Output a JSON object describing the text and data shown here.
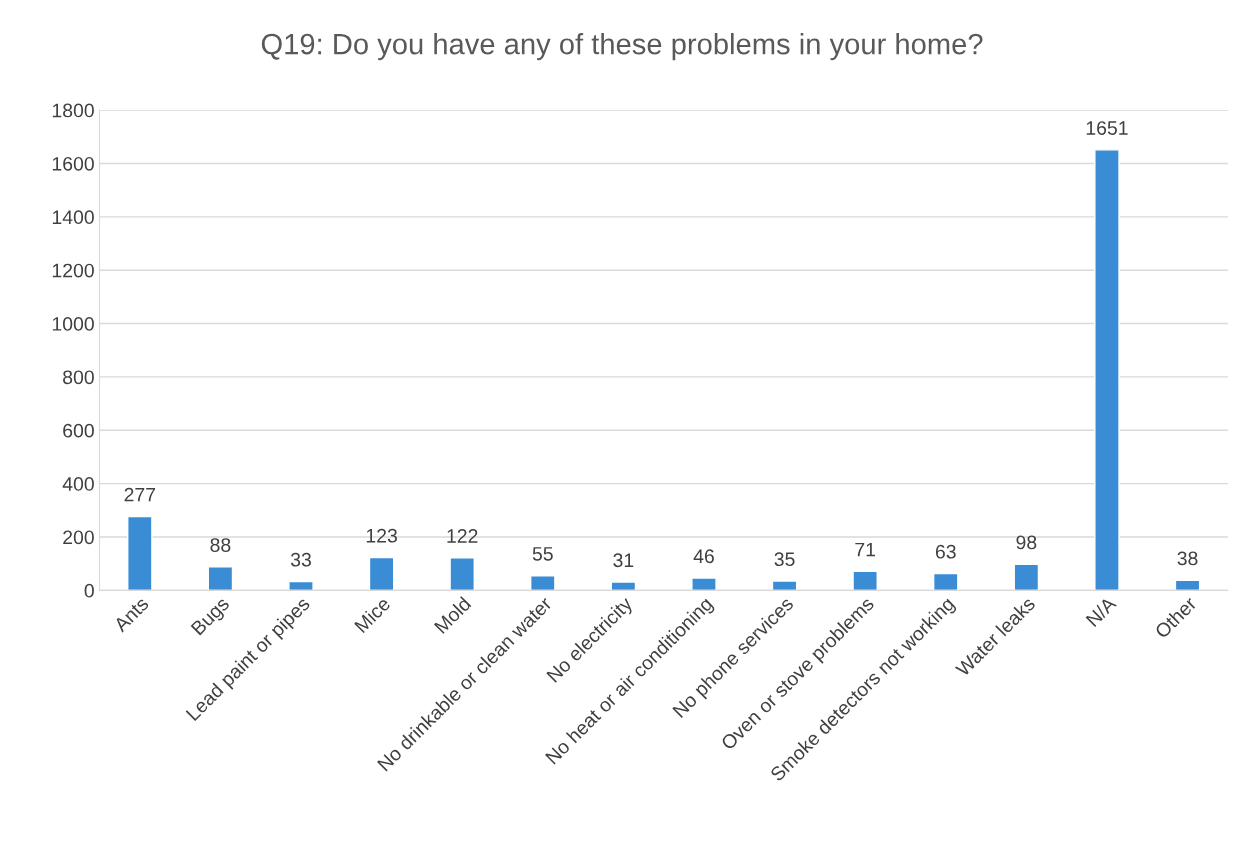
{
  "chart_data": {
    "type": "bar",
    "title": "Q19: Do you have any of these problems in your home?",
    "categories": [
      "Ants",
      "Bugs",
      "Lead paint or pipes",
      "Mice",
      "Mold",
      "No drinkable or clean water",
      "No electricity",
      "No heat or air conditioning",
      "No phone services",
      "Oven or stove problems",
      "Smoke detectors not working",
      "Water leaks",
      "N/A",
      "Other"
    ],
    "values": [
      277,
      88,
      33,
      123,
      122,
      55,
      31,
      46,
      35,
      71,
      63,
      98,
      1651,
      38
    ],
    "color": "#3a8dd4",
    "ylim": [
      0,
      1800
    ],
    "yticks": [
      0,
      200,
      400,
      600,
      800,
      1000,
      1200,
      1400,
      1600,
      1800
    ],
    "grid": "y",
    "data_labels": true,
    "legend": false
  }
}
